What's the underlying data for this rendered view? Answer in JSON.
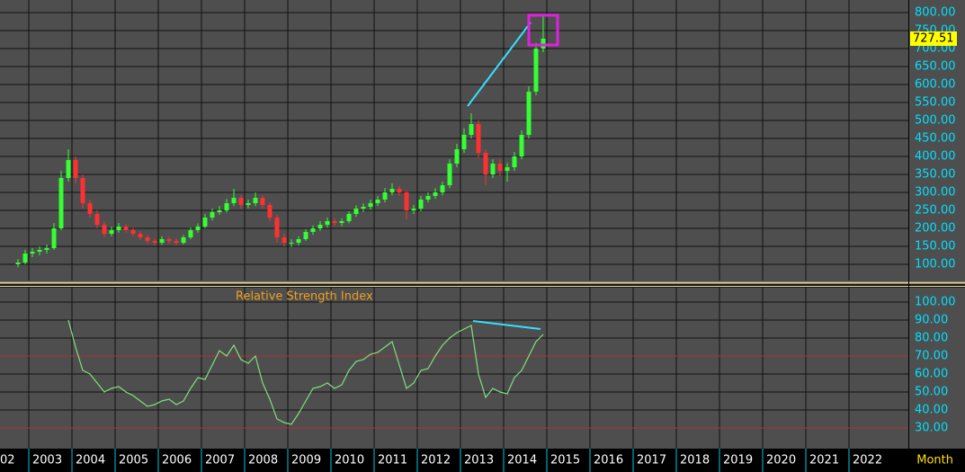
{
  "chart_data": [
    {
      "type": "candlestick",
      "x": [
        2002.75,
        2002.9167,
        2003.0833,
        2003.25,
        2003.4167,
        2003.5833,
        2003.75,
        2003.9167,
        2004.0833,
        2004.25,
        2004.4167,
        2004.5833,
        2004.75,
        2004.9167,
        2005.0833,
        2005.25,
        2005.4167,
        2005.5833,
        2005.75,
        2005.9167,
        2006.0833,
        2006.25,
        2006.4167,
        2006.5833,
        2006.75,
        2006.9167,
        2007.0833,
        2007.25,
        2007.4167,
        2007.5833,
        2007.75,
        2007.9167,
        2008.0833,
        2008.25,
        2008.4167,
        2008.5833,
        2008.75,
        2008.9167,
        2009.0833,
        2009.25,
        2009.4167,
        2009.5833,
        2009.75,
        2009.9167,
        2010.0833,
        2010.25,
        2010.4167,
        2010.5833,
        2010.75,
        2010.9167,
        2011.0833,
        2011.25,
        2011.4167,
        2011.5833,
        2011.75,
        2011.9167,
        2012.0833,
        2012.25,
        2012.4167,
        2012.5833,
        2012.75,
        2012.9167,
        2013.0833,
        2013.25,
        2013.4167,
        2013.5833,
        2013.75,
        2013.9167,
        2014.0833,
        2014.25,
        2014.4167,
        2014.5833,
        2014.75,
        2014.9167
      ],
      "open": [
        100,
        105,
        130,
        135,
        140,
        145,
        200,
        340,
        390,
        340,
        270,
        240,
        210,
        185,
        195,
        205,
        195,
        185,
        175,
        165,
        160,
        170,
        165,
        160,
        175,
        195,
        205,
        230,
        245,
        250,
        270,
        285,
        265,
        270,
        285,
        265,
        230,
        175,
        160,
        160,
        170,
        190,
        200,
        210,
        220,
        215,
        220,
        240,
        255,
        260,
        270,
        280,
        300,
        310,
        300,
        250,
        255,
        280,
        290,
        300,
        320,
        380,
        420,
        460,
        490,
        410,
        350,
        380,
        360,
        370,
        400,
        460,
        580,
        700
      ],
      "high": [
        115,
        140,
        145,
        150,
        155,
        215,
        360,
        420,
        400,
        350,
        280,
        250,
        218,
        205,
        215,
        212,
        202,
        192,
        182,
        172,
        178,
        176,
        172,
        182,
        202,
        214,
        240,
        255,
        262,
        282,
        310,
        292,
        280,
        300,
        292,
        272,
        238,
        185,
        170,
        178,
        198,
        208,
        220,
        230,
        228,
        228,
        248,
        264,
        270,
        280,
        290,
        312,
        325,
        318,
        306,
        265,
        290,
        300,
        312,
        330,
        392,
        435,
        478,
        520,
        500,
        420,
        392,
        392,
        382,
        412,
        472,
        595,
        715,
        790
      ],
      "low": [
        92,
        100,
        120,
        125,
        130,
        140,
        195,
        330,
        325,
        255,
        230,
        200,
        175,
        178,
        188,
        188,
        178,
        168,
        158,
        152,
        154,
        158,
        152,
        155,
        170,
        188,
        200,
        222,
        238,
        244,
        262,
        255,
        256,
        262,
        255,
        220,
        160,
        150,
        148,
        152,
        165,
        182,
        193,
        202,
        206,
        206,
        214,
        232,
        246,
        252,
        262,
        272,
        292,
        290,
        225,
        240,
        248,
        272,
        282,
        292,
        312,
        370,
        410,
        450,
        395,
        320,
        340,
        345,
        330,
        360,
        392,
        450,
        570,
        690
      ],
      "close": [
        105,
        130,
        135,
        140,
        145,
        200,
        340,
        390,
        340,
        270,
        240,
        210,
        185,
        195,
        205,
        195,
        185,
        175,
        165,
        160,
        170,
        165,
        160,
        175,
        195,
        205,
        230,
        245,
        250,
        270,
        285,
        265,
        270,
        285,
        265,
        230,
        175,
        160,
        160,
        170,
        190,
        200,
        210,
        220,
        215,
        220,
        240,
        255,
        260,
        270,
        280,
        300,
        310,
        300,
        250,
        255,
        280,
        290,
        300,
        320,
        380,
        420,
        460,
        490,
        410,
        350,
        380,
        360,
        370,
        400,
        460,
        580,
        700,
        727.51
      ],
      "up_color": "#33ff33",
      "down_color": "#ff3030",
      "xlim": [
        2002.333,
        2023.375
      ],
      "ylim": [
        55,
        835
      ],
      "yticks": [
        {
          "value": 100,
          "label": "100.00"
        },
        {
          "value": 150,
          "label": "150.00"
        },
        {
          "value": 200,
          "label": "200.00"
        },
        {
          "value": 250,
          "label": "250.00"
        },
        {
          "value": 300,
          "label": "300.00"
        },
        {
          "value": 350,
          "label": "350.00"
        },
        {
          "value": 400,
          "label": "400.00"
        },
        {
          "value": 450,
          "label": "450.00"
        },
        {
          "value": 500,
          "label": "500.00"
        },
        {
          "value": 550,
          "label": "550.00"
        },
        {
          "value": 600,
          "label": "600.00"
        },
        {
          "value": 650,
          "label": "650.00"
        },
        {
          "value": 700,
          "label": "700.00"
        },
        {
          "value": 750,
          "label": "750.00"
        },
        {
          "value": 800,
          "label": "800.00"
        }
      ],
      "grid": true
    },
    {
      "type": "line",
      "title": "Relative Strength Index",
      "series": [
        {
          "name": "RSI",
          "color": "#7fe07f",
          "values": [
            null,
            null,
            null,
            null,
            null,
            null,
            null,
            90,
            75,
            62,
            60,
            55,
            50,
            52,
            53,
            50,
            48,
            45,
            42,
            43,
            45,
            46,
            43,
            45,
            52,
            58,
            57,
            65,
            73,
            70,
            76,
            68,
            66,
            70,
            55,
            46,
            35,
            33,
            32,
            38,
            45,
            52,
            53,
            55,
            52,
            54,
            62,
            67,
            68,
            71,
            72,
            75,
            78,
            65,
            52,
            55,
            62,
            63,
            70,
            76,
            80,
            83,
            85,
            87,
            60,
            47,
            52,
            50,
            49,
            58,
            62,
            70,
            78,
            82
          ]
        }
      ],
      "hlines": [
        70,
        30
      ],
      "hline_color": "#b03030",
      "ylim": [
        19.5,
        108
      ],
      "yticks": [
        {
          "value": 30,
          "label": "30.00"
        },
        {
          "value": 40,
          "label": "40.00"
        },
        {
          "value": 50,
          "label": "50.00"
        },
        {
          "value": 60,
          "label": "60.00"
        },
        {
          "value": 70,
          "label": "70.00"
        },
        {
          "value": 80,
          "label": "80.00"
        },
        {
          "value": 90,
          "label": "90.00"
        },
        {
          "value": 100,
          "label": "100.00"
        }
      ],
      "xticks": [
        {
          "value": 2002,
          "label": "02"
        },
        2003,
        2004,
        2005,
        2006,
        2007,
        2008,
        2009,
        2010,
        2011,
        2012,
        2013,
        2014,
        2015,
        2016,
        2017,
        2018,
        2019,
        2020,
        2021,
        2022
      ],
      "xlabel": "Month",
      "grid": true
    }
  ]
}
